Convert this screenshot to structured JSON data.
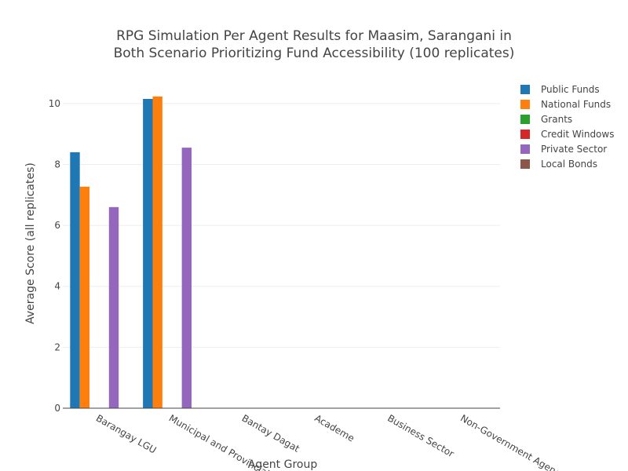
{
  "chart_data": {
    "type": "bar",
    "title_lines": [
      "RPG Simulation Per Agent Results for Maasim, Sarangani in",
      "Both Scenario Prioritizing Fund Accessibility (100 replicates)"
    ],
    "xlabel": "Agent Group",
    "ylabel": "Average Score (all replicates)",
    "ylim": [
      0,
      11
    ],
    "yticks": [
      0,
      2,
      4,
      6,
      8,
      10
    ],
    "grid": true,
    "legend_position": "top-right",
    "categories": [
      "Barangay LGU",
      "Municipal and Provincial",
      "Bantay Dagat",
      "Academe",
      "Business Sector",
      "Non-Government Agencies"
    ],
    "series": [
      {
        "name": "Public Funds",
        "color": "#1f77b4",
        "values": [
          8.4,
          10.15,
          0,
          0,
          0,
          0
        ]
      },
      {
        "name": "National Funds",
        "color": "#ff7f0e",
        "values": [
          7.27,
          10.23,
          0,
          0,
          0,
          0
        ]
      },
      {
        "name": "Grants",
        "color": "#2ca02c",
        "values": [
          0,
          0,
          0,
          0,
          0,
          0
        ]
      },
      {
        "name": "Credit Windows",
        "color": "#d62728",
        "values": [
          0,
          0,
          0,
          0,
          0,
          0
        ]
      },
      {
        "name": "Private Sector",
        "color": "#9467bd",
        "values": [
          6.6,
          8.55,
          0,
          0,
          0,
          0
        ]
      },
      {
        "name": "Local Bonds",
        "color": "#8c564b",
        "values": [
          0,
          0,
          0,
          0,
          0,
          0
        ]
      }
    ]
  }
}
